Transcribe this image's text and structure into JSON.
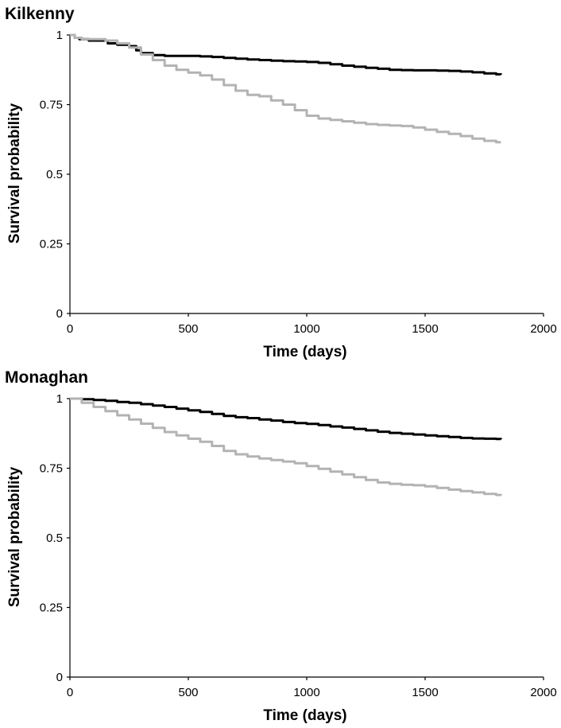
{
  "chart_data": [
    {
      "type": "line",
      "title": "Kilkenny",
      "xlabel": "Time (days)",
      "ylabel": "Survival probability",
      "xlim": [
        0,
        2000
      ],
      "ylim": [
        0,
        1
      ],
      "xticks": [
        "0",
        "500",
        "1000",
        "1500",
        "2000"
      ],
      "yticks": [
        "0",
        "0.25",
        "0.5",
        "0.75",
        "1"
      ],
      "grid": false,
      "series": [
        {
          "color": "#000000",
          "x": [
            0,
            20,
            40,
            80,
            120,
            160,
            200,
            250,
            280,
            300,
            350,
            400,
            450,
            500,
            550,
            600,
            650,
            700,
            750,
            800,
            850,
            900,
            950,
            1000,
            1050,
            1100,
            1150,
            1200,
            1250,
            1300,
            1350,
            1400,
            1450,
            1500,
            1550,
            1600,
            1650,
            1700,
            1750,
            1800,
            1820
          ],
          "y": [
            1.0,
            0.99,
            0.985,
            0.98,
            0.98,
            0.97,
            0.965,
            0.96,
            0.945,
            0.935,
            0.928,
            0.925,
            0.925,
            0.925,
            0.923,
            0.921,
            0.918,
            0.915,
            0.912,
            0.91,
            0.908,
            0.906,
            0.905,
            0.903,
            0.9,
            0.895,
            0.89,
            0.886,
            0.882,
            0.879,
            0.875,
            0.874,
            0.873,
            0.873,
            0.872,
            0.871,
            0.869,
            0.866,
            0.862,
            0.859,
            0.858
          ]
        },
        {
          "color": "#b3b3b3",
          "x": [
            0,
            20,
            50,
            100,
            150,
            200,
            250,
            300,
            350,
            400,
            450,
            500,
            550,
            600,
            650,
            700,
            750,
            800,
            850,
            900,
            950,
            1000,
            1050,
            1100,
            1150,
            1200,
            1250,
            1300,
            1350,
            1400,
            1450,
            1500,
            1550,
            1600,
            1650,
            1700,
            1750,
            1800,
            1820
          ],
          "y": [
            1.0,
            0.99,
            0.985,
            0.985,
            0.98,
            0.97,
            0.955,
            0.93,
            0.91,
            0.89,
            0.875,
            0.865,
            0.855,
            0.84,
            0.82,
            0.8,
            0.785,
            0.78,
            0.765,
            0.75,
            0.73,
            0.71,
            0.7,
            0.695,
            0.69,
            0.685,
            0.68,
            0.677,
            0.675,
            0.673,
            0.668,
            0.66,
            0.652,
            0.645,
            0.637,
            0.628,
            0.62,
            0.615,
            0.615
          ]
        }
      ]
    },
    {
      "type": "line",
      "title": "Monaghan",
      "xlabel": "Time (days)",
      "ylabel": "Survival probability",
      "xlim": [
        0,
        2000
      ],
      "ylim": [
        0,
        1
      ],
      "xticks": [
        "0",
        "500",
        "1000",
        "1500",
        "2000"
      ],
      "yticks": [
        "0",
        "0.25",
        "0.5",
        "0.75",
        "1"
      ],
      "grid": false,
      "series": [
        {
          "color": "#000000",
          "x": [
            0,
            50,
            100,
            150,
            200,
            250,
            300,
            350,
            400,
            450,
            500,
            550,
            600,
            650,
            700,
            750,
            800,
            850,
            900,
            950,
            1000,
            1050,
            1100,
            1150,
            1200,
            1250,
            1300,
            1350,
            1400,
            1450,
            1500,
            1550,
            1600,
            1650,
            1700,
            1750,
            1800,
            1820
          ],
          "y": [
            1.0,
            0.998,
            0.995,
            0.992,
            0.988,
            0.985,
            0.98,
            0.975,
            0.97,
            0.964,
            0.958,
            0.952,
            0.945,
            0.938,
            0.933,
            0.93,
            0.925,
            0.921,
            0.916,
            0.912,
            0.909,
            0.905,
            0.9,
            0.896,
            0.891,
            0.886,
            0.881,
            0.877,
            0.874,
            0.871,
            0.868,
            0.865,
            0.862,
            0.859,
            0.857,
            0.856,
            0.855,
            0.854
          ]
        },
        {
          "color": "#b3b3b3",
          "x": [
            0,
            50,
            100,
            150,
            200,
            250,
            300,
            350,
            400,
            450,
            500,
            550,
            600,
            650,
            700,
            750,
            800,
            850,
            900,
            950,
            1000,
            1050,
            1100,
            1150,
            1200,
            1250,
            1300,
            1350,
            1400,
            1450,
            1500,
            1550,
            1600,
            1650,
            1700,
            1750,
            1800,
            1820
          ],
          "y": [
            1.0,
            0.985,
            0.97,
            0.955,
            0.94,
            0.925,
            0.91,
            0.895,
            0.88,
            0.868,
            0.856,
            0.845,
            0.83,
            0.812,
            0.8,
            0.792,
            0.785,
            0.779,
            0.774,
            0.768,
            0.758,
            0.748,
            0.738,
            0.728,
            0.718,
            0.708,
            0.699,
            0.694,
            0.691,
            0.689,
            0.685,
            0.679,
            0.673,
            0.668,
            0.663,
            0.658,
            0.654,
            0.652
          ]
        }
      ]
    }
  ]
}
